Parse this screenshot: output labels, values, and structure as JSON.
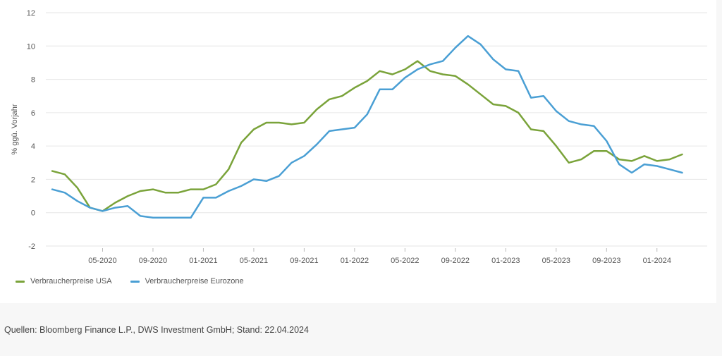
{
  "source_note": "Quellen: Bloomberg Finance L.P., DWS Investment GmbH; Stand: 22.04.2024",
  "colors": {
    "usa": "#7aa33a",
    "eurozone": "#4a9fd4",
    "grid": "#e6e6e6"
  },
  "chart_data": {
    "type": "line",
    "title": "",
    "xlabel": "",
    "ylabel": "% ggü. Vorjahr",
    "ylim": [
      -2,
      12
    ],
    "yticks": [
      -2,
      0,
      2,
      4,
      6,
      8,
      10,
      12
    ],
    "grid": true,
    "legend_position": "bottom-left",
    "x": [
      "01-2020",
      "02-2020",
      "03-2020",
      "04-2020",
      "05-2020",
      "06-2020",
      "07-2020",
      "08-2020",
      "09-2020",
      "10-2020",
      "11-2020",
      "12-2020",
      "01-2021",
      "02-2021",
      "03-2021",
      "04-2021",
      "05-2021",
      "06-2021",
      "07-2021",
      "08-2021",
      "09-2021",
      "10-2021",
      "11-2021",
      "12-2021",
      "01-2022",
      "02-2022",
      "03-2022",
      "04-2022",
      "05-2022",
      "06-2022",
      "07-2022",
      "08-2022",
      "09-2022",
      "10-2022",
      "11-2022",
      "12-2022",
      "01-2023",
      "02-2023",
      "03-2023",
      "04-2023",
      "05-2023",
      "06-2023",
      "07-2023",
      "08-2023",
      "09-2023",
      "10-2023",
      "11-2023",
      "12-2023",
      "01-2024",
      "02-2024",
      "03-2024"
    ],
    "xtick_labels": [
      "05-2020",
      "09-2020",
      "01-2021",
      "05-2021",
      "09-2021",
      "01-2022",
      "05-2022",
      "09-2022",
      "01-2023",
      "05-2023",
      "09-2023",
      "01-2024"
    ],
    "series": [
      {
        "name": "Verbraucherpreise USA",
        "color": "#7aa33a",
        "values": [
          2.5,
          2.3,
          1.5,
          0.3,
          0.1,
          0.6,
          1.0,
          1.3,
          1.4,
          1.2,
          1.2,
          1.4,
          1.4,
          1.7,
          2.6,
          4.2,
          5.0,
          5.4,
          5.4,
          5.3,
          5.4,
          6.2,
          6.8,
          7.0,
          7.5,
          7.9,
          8.5,
          8.3,
          8.6,
          9.1,
          8.5,
          8.3,
          8.2,
          7.7,
          7.1,
          6.5,
          6.4,
          6.0,
          5.0,
          4.9,
          4.0,
          3.0,
          3.2,
          3.7,
          3.7,
          3.2,
          3.1,
          3.4,
          3.1,
          3.2,
          3.5
        ]
      },
      {
        "name": "Verbraucherpreise Eurozone",
        "color": "#4a9fd4",
        "values": [
          1.4,
          1.2,
          0.7,
          0.3,
          0.1,
          0.3,
          0.4,
          -0.2,
          -0.3,
          -0.3,
          -0.3,
          -0.3,
          0.9,
          0.9,
          1.3,
          1.6,
          2.0,
          1.9,
          2.2,
          3.0,
          3.4,
          4.1,
          4.9,
          5.0,
          5.1,
          5.9,
          7.4,
          7.4,
          8.1,
          8.6,
          8.9,
          9.1,
          9.9,
          10.6,
          10.1,
          9.2,
          8.6,
          8.5,
          6.9,
          7.0,
          6.1,
          5.5,
          5.3,
          5.2,
          4.3,
          2.9,
          2.4,
          2.9,
          2.8,
          2.6,
          2.4
        ]
      }
    ]
  }
}
